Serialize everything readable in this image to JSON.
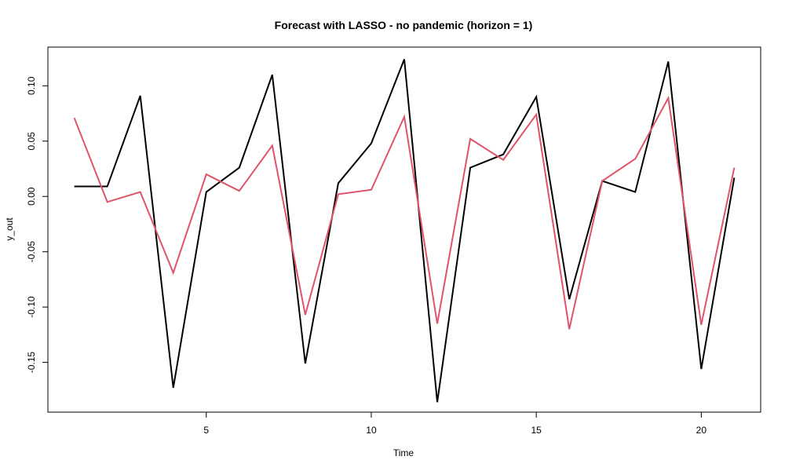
{
  "chart_data": {
    "type": "line",
    "title": "Forecast with LASSO - no pandemic (horizon = 1)",
    "xlabel": "Time",
    "ylabel": "y_out",
    "xlim": [
      0.2,
      21.8
    ],
    "ylim": [
      -0.195,
      0.135
    ],
    "x_ticks": [
      5,
      10,
      15,
      20
    ],
    "x_tick_labels": [
      "5",
      "10",
      "15",
      "20"
    ],
    "y_ticks": [
      -0.15,
      -0.1,
      -0.05,
      0.0,
      0.05,
      0.1
    ],
    "y_tick_labels": [
      "-0.15",
      "-0.10",
      "-0.05",
      "0.00",
      "0.05",
      "0.10"
    ],
    "grid": false,
    "x": [
      1,
      2,
      3,
      4,
      5,
      6,
      7,
      8,
      9,
      10,
      11,
      12,
      13,
      14,
      15,
      16,
      17,
      18,
      19,
      20,
      21
    ],
    "series": [
      {
        "color": "#000000",
        "values": [
          0.009,
          0.009,
          0.091,
          -0.173,
          0.004,
          0.026,
          0.11,
          -0.151,
          0.012,
          0.048,
          0.124,
          -0.186,
          0.026,
          0.038,
          0.09,
          -0.093,
          0.014,
          0.004,
          0.122,
          -0.156,
          0.017
        ]
      },
      {
        "color": "#DF536B",
        "values": [
          0.071,
          -0.005,
          0.004,
          -0.069,
          0.02,
          0.005,
          0.046,
          -0.107,
          0.002,
          0.006,
          0.072,
          -0.115,
          0.052,
          0.033,
          0.074,
          -0.12,
          0.014,
          0.034,
          0.089,
          -0.116,
          0.026
        ]
      }
    ]
  }
}
